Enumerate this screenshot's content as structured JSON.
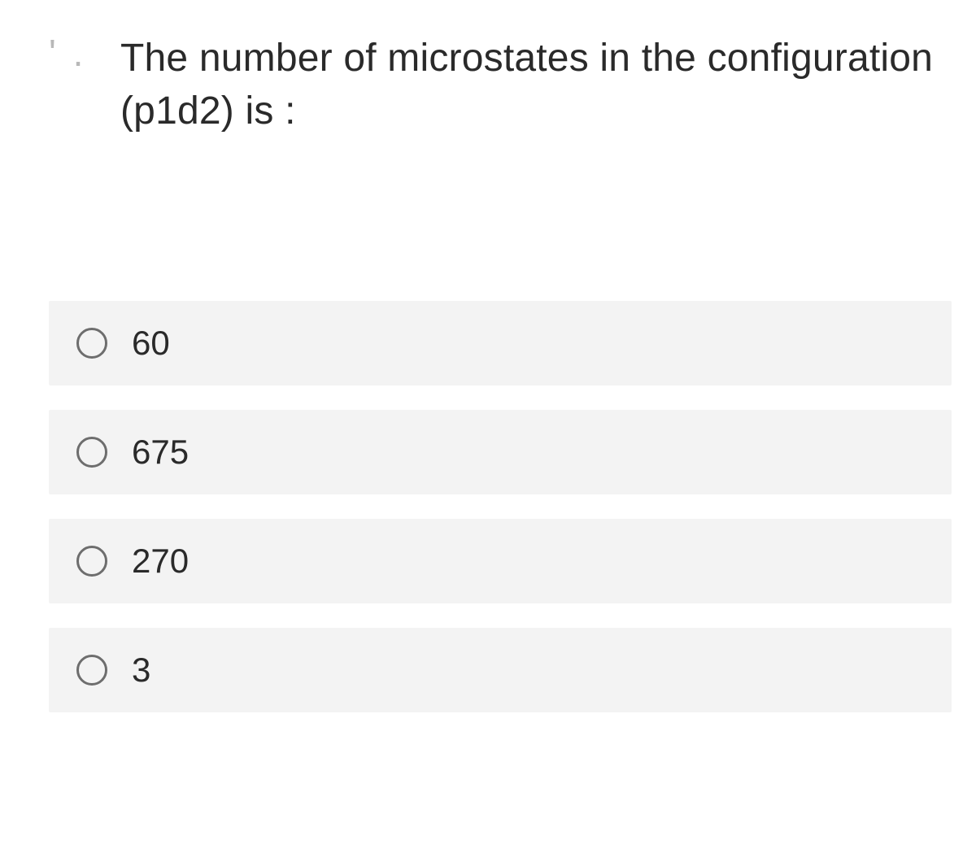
{
  "question": {
    "marker": "' .",
    "text": "The number of microstates in the configuration (p1d2) is :"
  },
  "options": [
    {
      "label": "60"
    },
    {
      "label": "675"
    },
    {
      "label": "270"
    },
    {
      "label": "3"
    }
  ],
  "styling": {
    "background_color": "#ffffff",
    "option_bg": "#f3f3f3",
    "text_color": "#2a2a2a",
    "radio_border": "#6d6d6d",
    "question_fontsize": 48,
    "option_fontsize": 42,
    "radio_size": 38
  }
}
